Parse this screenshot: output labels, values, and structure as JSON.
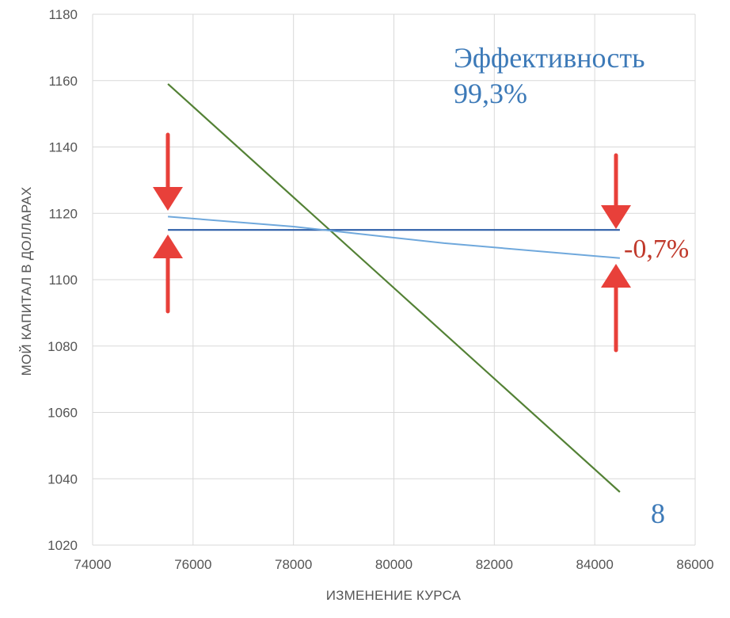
{
  "chart_data": {
    "type": "line",
    "xlabel": "ИЗМЕНЕНИЕ КУРСА",
    "ylabel": "МОЙ КАПИТАЛ В ДОЛЛАРАХ",
    "xlim": [
      74000,
      86000
    ],
    "ylim": [
      1020,
      1180
    ],
    "x_ticks": [
      "74000",
      "76000",
      "78000",
      "80000",
      "82000",
      "84000",
      "86000"
    ],
    "y_ticks": [
      "1020",
      "1040",
      "1060",
      "1080",
      "1100",
      "1120",
      "1140",
      "1160",
      "1180"
    ],
    "grid": true,
    "series": [
      {
        "x": [
          75500,
          84500
        ],
        "values": [
          1159,
          1036
        ],
        "color": "#538135"
      },
      {
        "x": [
          75500,
          84500
        ],
        "values": [
          1115,
          1115
        ],
        "color": "#2e5fa8"
      },
      {
        "x": [
          75500,
          78000,
          81000,
          84500
        ],
        "values": [
          1119,
          1116,
          1111,
          1106.5
        ],
        "color": "#6fa8dc"
      }
    ],
    "annotations": {
      "efficiency_label": "Эффективность",
      "efficiency_value": "99,3%",
      "change_value": "-0,7%",
      "corner_number": "8"
    },
    "colors": {
      "arrow": "#e8403a",
      "annotation_blue": "#3d7ab8",
      "annotation_red": "#c0392b"
    }
  }
}
